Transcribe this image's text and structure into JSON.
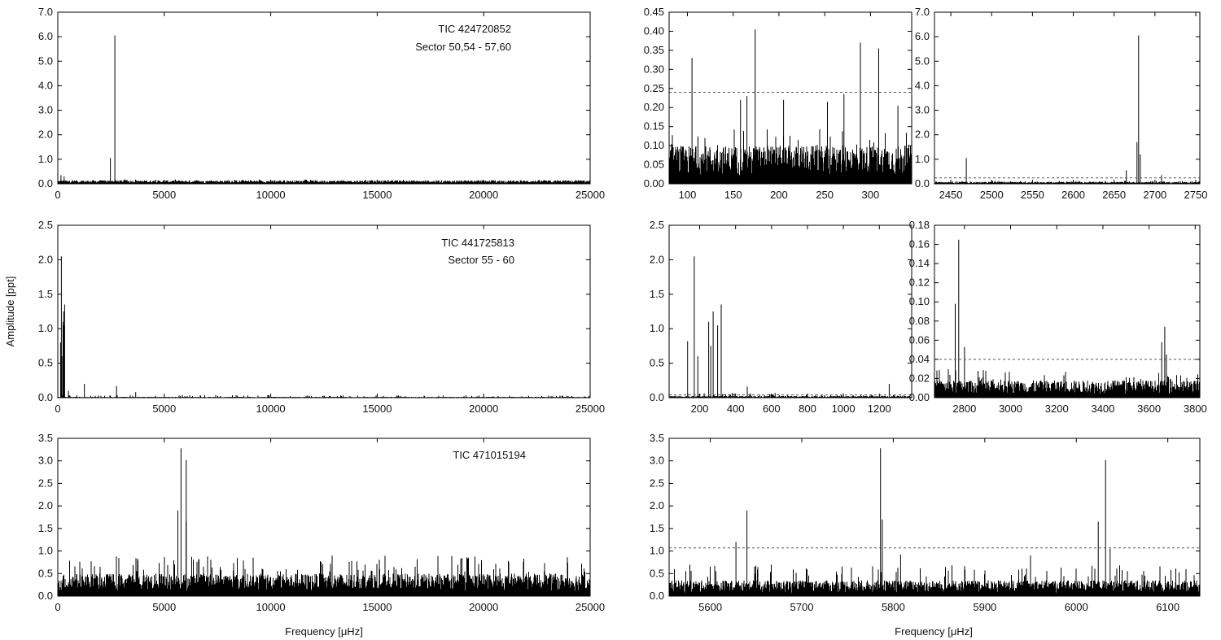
{
  "figure": {
    "ylabel": "Amplitude [ppt]",
    "xlabel": "Frequency [μHz]"
  },
  "chart_data": [
    {
      "id": "p00",
      "type": "line",
      "annotations": [
        "TIC 424720852",
        "Sector 50,54 - 57,60"
      ],
      "xlim": [
        0,
        25000
      ],
      "ylim": [
        0,
        7
      ],
      "xticks": [
        0,
        5000,
        10000,
        15000,
        20000,
        25000
      ],
      "yticks": [
        0,
        1,
        2,
        3,
        4,
        5,
        6,
        7
      ],
      "ytick_labels": [
        "0.0",
        "1.0",
        "2.0",
        "3.0",
        "4.0",
        "5.0",
        "6.0",
        "7.0"
      ],
      "noise": 0.14,
      "noise_profile": [
        [
          0,
          0.28
        ],
        [
          500,
          0.18
        ],
        [
          25000,
          0.16
        ]
      ],
      "threshold": null,
      "peaks": [
        [
          2469,
          1.05
        ],
        [
          2680,
          6.05
        ],
        [
          150,
          0.35
        ],
        [
          300,
          0.3
        ]
      ]
    },
    {
      "id": "p01",
      "type": "line",
      "xlim": [
        80,
        345
      ],
      "ylim": [
        0,
        0.45
      ],
      "xticks": [
        100,
        150,
        200,
        250,
        300
      ],
      "yticks": [
        0,
        0.05,
        0.1,
        0.15,
        0.2,
        0.25,
        0.3,
        0.35,
        0.4,
        0.45
      ],
      "ytick_labels": [
        "0.00",
        "0.05",
        "0.10",
        "0.15",
        "0.20",
        "0.25",
        "0.30",
        "0.35",
        "0.40",
        "0.45"
      ],
      "noise": 0.1,
      "noise_profile": [
        [
          80,
          0.15
        ],
        [
          345,
          0.14
        ]
      ],
      "threshold": 0.24,
      "peaks": [
        [
          105,
          0.33
        ],
        [
          174,
          0.405
        ],
        [
          158,
          0.22
        ],
        [
          165,
          0.23
        ],
        [
          205,
          0.22
        ],
        [
          253,
          0.215
        ],
        [
          271,
          0.235
        ],
        [
          289,
          0.37
        ],
        [
          309,
          0.355
        ],
        [
          330,
          0.205
        ]
      ]
    },
    {
      "id": "p02",
      "type": "line",
      "xlim": [
        2430,
        2755
      ],
      "ylim": [
        0,
        7
      ],
      "xticks": [
        2450,
        2500,
        2550,
        2600,
        2650,
        2700,
        2750
      ],
      "yticks": [
        0,
        1,
        2,
        3,
        4,
        5,
        6,
        7
      ],
      "ytick_labels": [
        "0.0",
        "1.0",
        "2.0",
        "3.0",
        "4.0",
        "5.0",
        "6.0",
        "7.0"
      ],
      "noise": 0.08,
      "noise_profile": [
        [
          2430,
          0.12
        ],
        [
          2755,
          0.12
        ]
      ],
      "threshold": 0.24,
      "peaks": [
        [
          2469,
          1.05
        ],
        [
          2680,
          6.05
        ],
        [
          2678,
          1.7
        ],
        [
          2682,
          1.2
        ],
        [
          2665,
          0.55
        ],
        [
          2708,
          0.35
        ]
      ]
    },
    {
      "id": "p10",
      "type": "line",
      "annotations": [
        "TIC 441725813",
        "Sector 55 - 60"
      ],
      "xlim": [
        0,
        25000
      ],
      "ylim": [
        0,
        2.5
      ],
      "xticks": [
        0,
        5000,
        10000,
        15000,
        20000,
        25000
      ],
      "yticks": [
        0,
        0.5,
        1,
        1.5,
        2,
        2.5
      ],
      "ytick_labels": [
        "0.0",
        "0.5",
        "1.0",
        "1.5",
        "2.0",
        "2.5"
      ],
      "noise": 0.012,
      "noise_profile": [
        [
          0,
          0.04
        ],
        [
          25000,
          0.03
        ]
      ],
      "threshold": null,
      "peaks": [
        [
          130,
          0.8
        ],
        [
          170,
          2.05
        ],
        [
          190,
          0.6
        ],
        [
          245,
          1.1
        ],
        [
          270,
          1.25
        ],
        [
          300,
          1.05
        ],
        [
          320,
          1.35
        ],
        [
          1250,
          0.2
        ],
        [
          2760,
          0.17
        ],
        [
          3660,
          0.08
        ],
        [
          500,
          0.1
        ]
      ]
    },
    {
      "id": "p11",
      "type": "line",
      "xlim": [
        30,
        1380
      ],
      "ylim": [
        0,
        2.5
      ],
      "xticks": [
        200,
        400,
        600,
        800,
        1000,
        1200
      ],
      "yticks": [
        0,
        0.5,
        1,
        1.5,
        2,
        2.5
      ],
      "ytick_labels": [
        "0.0",
        "0.5",
        "1.0",
        "1.5",
        "2.0",
        "2.5"
      ],
      "noise": 0.025,
      "noise_profile": [
        [
          30,
          0.1
        ],
        [
          600,
          0.05
        ],
        [
          1380,
          0.04
        ]
      ],
      "threshold": 0.04,
      "peaks": [
        [
          133,
          0.82
        ],
        [
          170,
          2.05
        ],
        [
          190,
          0.6
        ],
        [
          250,
          1.1
        ],
        [
          262,
          0.75
        ],
        [
          275,
          1.25
        ],
        [
          300,
          1.05
        ],
        [
          320,
          1.35
        ],
        [
          465,
          0.16
        ],
        [
          620,
          0.07
        ],
        [
          1255,
          0.2
        ]
      ]
    },
    {
      "id": "p12",
      "type": "line",
      "xlim": [
        2670,
        3820
      ],
      "ylim": [
        0,
        0.18
      ],
      "xticks": [
        2800,
        3000,
        3200,
        3400,
        3600,
        3800
      ],
      "yticks": [
        0,
        0.02,
        0.04,
        0.06,
        0.08,
        0.1,
        0.12,
        0.14,
        0.16,
        0.18
      ],
      "ytick_labels": [
        "0.00",
        "0.02",
        "0.04",
        "0.06",
        "0.08",
        "0.10",
        "0.12",
        "0.14",
        "0.16",
        "0.18"
      ],
      "noise": 0.018,
      "noise_profile": [
        [
          2670,
          0.03
        ],
        [
          3820,
          0.025
        ]
      ],
      "threshold": 0.04,
      "peaks": [
        [
          2760,
          0.098
        ],
        [
          2775,
          0.165
        ],
        [
          2800,
          0.053
        ],
        [
          3655,
          0.058
        ],
        [
          3668,
          0.074
        ],
        [
          3675,
          0.045
        ]
      ]
    },
    {
      "id": "p20",
      "type": "line",
      "annotations": [
        "TIC 471015194"
      ],
      "xlim": [
        0,
        25000
      ],
      "ylim": [
        0,
        3.5
      ],
      "xticks": [
        0,
        5000,
        10000,
        15000,
        20000,
        25000
      ],
      "yticks": [
        0,
        0.5,
        1,
        1.5,
        2,
        2.5,
        3,
        3.5
      ],
      "ytick_labels": [
        "0.0",
        "0.5",
        "1.0",
        "1.5",
        "2.0",
        "2.5",
        "3.0",
        "3.5"
      ],
      "noise": 0.5,
      "noise_profile": [
        [
          0,
          0.9
        ],
        [
          25000,
          0.9
        ]
      ],
      "threshold": null,
      "peaks": [
        [
          5640,
          1.9
        ],
        [
          5787,
          3.28
        ],
        [
          6032,
          3.02
        ],
        [
          6026,
          1.65
        ]
      ]
    },
    {
      "id": "p21",
      "type": "line",
      "xlim": [
        5555,
        6135
      ],
      "ylim": [
        0,
        3.5
      ],
      "xticks": [
        5600,
        5700,
        5800,
        5900,
        6000,
        6100
      ],
      "yticks": [
        0,
        0.5,
        1,
        1.5,
        2,
        2.5,
        3,
        3.5
      ],
      "ytick_labels": [
        "0.0",
        "0.5",
        "1.0",
        "1.5",
        "2.0",
        "2.5",
        "3.0",
        "3.5"
      ],
      "noise": 0.35,
      "noise_profile": [
        [
          5555,
          0.7
        ],
        [
          6135,
          0.7
        ]
      ],
      "threshold": 1.07,
      "peaks": [
        [
          5628,
          1.2
        ],
        [
          5640,
          1.9
        ],
        [
          5786,
          3.28
        ],
        [
          5788,
          1.7
        ],
        [
          5808,
          0.92
        ],
        [
          6024,
          1.65
        ],
        [
          6032,
          3.02
        ],
        [
          6037,
          1.05
        ],
        [
          5950,
          0.9
        ]
      ]
    }
  ]
}
